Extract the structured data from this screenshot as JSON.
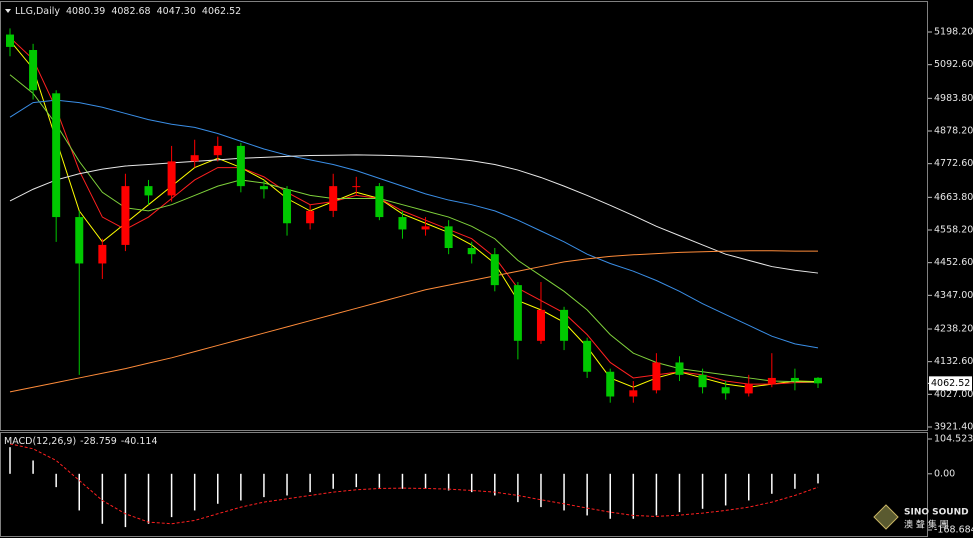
{
  "chart_data": [
    {
      "type": "candlestick",
      "title": "LLG,Daily",
      "last_ohlc": [
        4080.39,
        4082.68,
        4047.3,
        4062.52
      ],
      "last_ohlc_labels": [
        "4080.39",
        "4082.68",
        "4047.30",
        "4062.52"
      ],
      "open": [
        5190,
        5140,
        5000,
        4600,
        4450,
        4510,
        4700,
        4670,
        4780,
        4800,
        4830,
        4700,
        4690,
        4580,
        4620,
        4700,
        4700,
        4600,
        4560,
        4570,
        4500,
        4480,
        4380,
        4200,
        4300,
        4200,
        4100,
        4020,
        4040,
        4130,
        4090,
        4050,
        4030,
        4060,
        4080,
        4080.39
      ],
      "high": [
        5210,
        5160,
        5010,
        4620,
        4530,
        4740,
        4720,
        4830,
        4850,
        4860,
        4840,
        4720,
        4700,
        4640,
        4740,
        4730,
        4710,
        4620,
        4600,
        4590,
        4520,
        4500,
        4390,
        4390,
        4310,
        4210,
        4110,
        4070,
        4160,
        4150,
        4110,
        4070,
        4090,
        4160,
        4110,
        4082.68
      ],
      "low": [
        5120,
        4980,
        4520,
        4090,
        4400,
        4490,
        4640,
        4650,
        4760,
        4780,
        4680,
        4660,
        4540,
        4560,
        4600,
        4670,
        4590,
        4530,
        4540,
        4480,
        4450,
        4360,
        4140,
        4190,
        4170,
        4080,
        4000,
        4000,
        4030,
        4070,
        4030,
        4010,
        4020,
        4050,
        4040,
        4047.3
      ],
      "close": [
        5150,
        5010,
        4600,
        4450,
        4510,
        4700,
        4670,
        4780,
        4800,
        4830,
        4700,
        4690,
        4580,
        4620,
        4700,
        4700,
        4600,
        4560,
        4570,
        4500,
        4480,
        4380,
        4200,
        4300,
        4200,
        4100,
        4020,
        4040,
        4130,
        4090,
        4050,
        4030,
        4060,
        4080,
        4070,
        4062.52
      ],
      "up_color": "#ff0000",
      "down_color": "#00c800",
      "series": [
        {
          "color": "#ffff00",
          "values": [
            5170,
            5080,
            4850,
            4620,
            4520,
            4580,
            4640,
            4700,
            4760,
            4790,
            4760,
            4720,
            4660,
            4620,
            4650,
            4680,
            4660,
            4610,
            4580,
            4550,
            4510,
            4450,
            4330,
            4300,
            4260,
            4180,
            4080,
            4050,
            4080,
            4100,
            4080,
            4060,
            4050,
            4060,
            4070,
            4068
          ]
        },
        {
          "color": "#ff2020",
          "values": [
            5180,
            5110,
            4950,
            4750,
            4600,
            4560,
            4600,
            4660,
            4720,
            4760,
            4760,
            4730,
            4680,
            4640,
            4650,
            4670,
            4660,
            4620,
            4590,
            4560,
            4530,
            4470,
            4370,
            4330,
            4290,
            4220,
            4130,
            4080,
            4090,
            4100,
            4090,
            4070,
            4060,
            4060,
            4065,
            4066
          ]
        },
        {
          "color": "#7fd13b",
          "values": [
            5060,
            5000,
            4900,
            4780,
            4680,
            4630,
            4620,
            4640,
            4670,
            4700,
            4720,
            4710,
            4690,
            4670,
            4660,
            4660,
            4660,
            4640,
            4620,
            4600,
            4570,
            4530,
            4460,
            4410,
            4360,
            4300,
            4220,
            4160,
            4130,
            4110,
            4100,
            4090,
            4080,
            4070,
            4068,
            4066
          ]
        },
        {
          "color": "#3a8ee6",
          "values": [
            4923,
            4970,
            4978,
            4970,
            4955,
            4935,
            4915,
            4900,
            4890,
            4870,
            4845,
            4820,
            4800,
            4785,
            4770,
            4750,
            4725,
            4700,
            4675,
            4655,
            4640,
            4620,
            4590,
            4555,
            4520,
            4480,
            4450,
            4425,
            4395,
            4360,
            4320,
            4285,
            4250,
            4215,
            4190,
            4177
          ]
        },
        {
          "color": "#e8e8e8",
          "values": [
            4652,
            4690,
            4720,
            4740,
            4755,
            4765,
            4770,
            4775,
            4780,
            4785,
            4790,
            4793,
            4796,
            4799,
            4800,
            4801,
            4800,
            4798,
            4795,
            4790,
            4782,
            4770,
            4752,
            4728,
            4700,
            4670,
            4638,
            4605,
            4570,
            4540,
            4510,
            4480,
            4460,
            4440,
            4428,
            4419
          ]
        },
        {
          "color": "#ff8c3a",
          "values": [
            4035,
            4050,
            4065,
            4080,
            4095,
            4110,
            4128,
            4145,
            4165,
            4185,
            4205,
            4225,
            4245,
            4265,
            4285,
            4305,
            4325,
            4345,
            4365,
            4380,
            4395,
            4410,
            4425,
            4440,
            4455,
            4465,
            4473,
            4478,
            4482,
            4486,
            4488,
            4490,
            4491,
            4491,
            4490,
            4490
          ]
        }
      ],
      "ylim": [
        3911.7,
        5295.2
      ],
      "yticks": [
        {
          "value": 5198.2,
          "label": "5198.20"
        },
        {
          "value": 5092.6,
          "label": "5092.60"
        },
        {
          "value": 4983.8,
          "label": "4983.80"
        },
        {
          "value": 4878.2,
          "label": "4878.20"
        },
        {
          "value": 4772.6,
          "label": "4772.60"
        },
        {
          "value": 4663.8,
          "label": "4663.80"
        },
        {
          "value": 4558.2,
          "label": "4558.20"
        },
        {
          "value": 4452.6,
          "label": "4452.60"
        },
        {
          "value": 4347,
          "label": "4347.00"
        },
        {
          "value": 4238.2,
          "label": "4238.20"
        },
        {
          "value": 4132.6,
          "label": "4132.60"
        },
        {
          "value": 4027,
          "label": "4027.00"
        },
        {
          "value": 3921.4,
          "label": "3921.40"
        }
      ],
      "current_price": {
        "value": 4062.52,
        "label": "4062.52"
      }
    },
    {
      "type": "macd",
      "title": "MACD(12,26,9)",
      "main_value": -28.759,
      "signal_value": -40.114,
      "histogram": {
        "color": "#ffffff",
        "values": [
          80,
          40,
          -40,
          -110,
          -150,
          -160,
          -150,
          -130,
          -110,
          -90,
          -80,
          -70,
          -65,
          -55,
          -45,
          -40,
          -42,
          -45,
          -45,
          -50,
          -55,
          -65,
          -85,
          -100,
          -110,
          -125,
          -135,
          -135,
          -125,
          -115,
          -105,
          -95,
          -80,
          -60,
          -45,
          -28.759
        ]
      },
      "signal": {
        "color": "#ff2020",
        "values": [
          90,
          75,
          40,
          -20,
          -80,
          -120,
          -145,
          -150,
          -140,
          -120,
          -100,
          -85,
          -75,
          -65,
          -55,
          -48,
          -44,
          -43,
          -44,
          -46,
          -50,
          -55,
          -65,
          -78,
          -90,
          -103,
          -115,
          -125,
          -128,
          -124,
          -118,
          -110,
          -100,
          -85,
          -65,
          -40.114
        ]
      },
      "ylim": [
        -186.7,
        122.5
      ],
      "yticks": [
        104.523,
        {
          "value": 0,
          "label": "0.00"
        },
        -168.684
      ]
    }
  ],
  "watermark": {
    "brand": "SINO SOUND",
    "sub": "澳 聲 集 團"
  }
}
